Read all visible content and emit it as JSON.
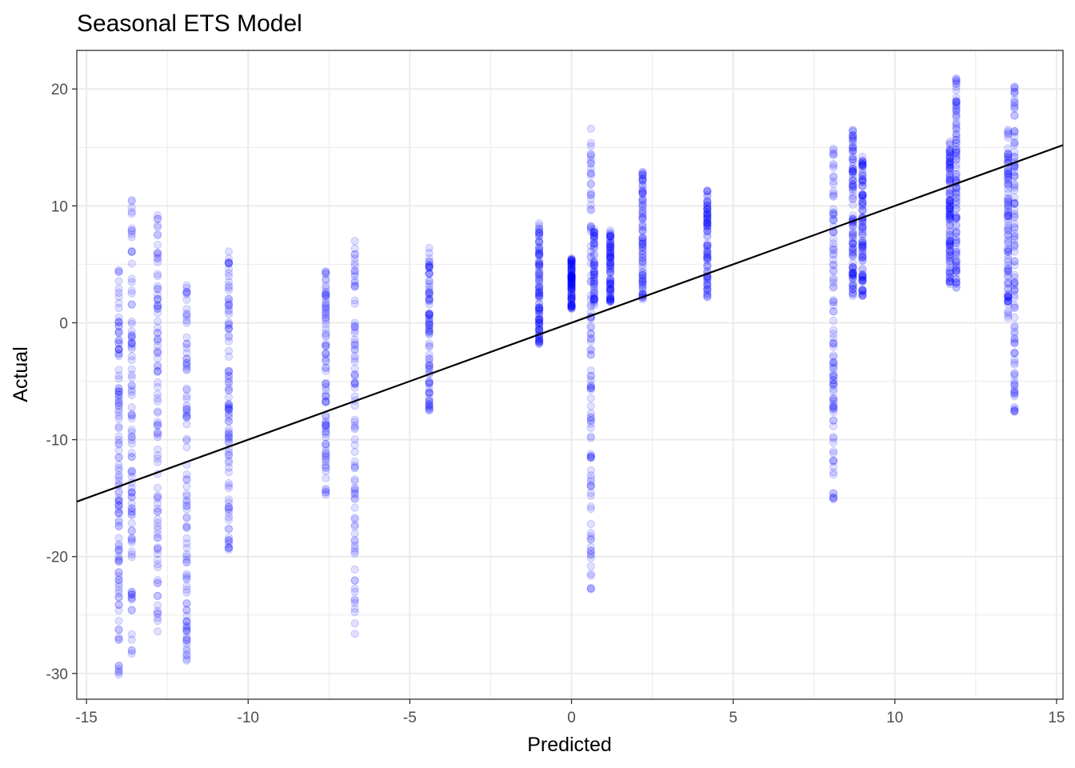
{
  "chart_data": {
    "type": "scatter",
    "title": "Seasonal ETS Model",
    "xlabel": "Predicted",
    "ylabel": "Actual",
    "xlim": [
      -15.3,
      15.2
    ],
    "ylim": [
      -32.2,
      23.3
    ],
    "x_ticks": [
      -15,
      -10,
      -5,
      0,
      5,
      10,
      15
    ],
    "y_ticks": [
      -30,
      -20,
      -10,
      0,
      10,
      20
    ],
    "x_tick_labels": [
      "-15",
      "-10",
      "-5",
      "0",
      "5",
      "10",
      "15"
    ],
    "y_tick_labels": [
      "-30",
      "-20",
      "-10",
      "0",
      "10",
      "20"
    ],
    "grid": true,
    "point_color": "#0000ff",
    "point_alpha": 0.12,
    "reference_line": {
      "type": "identity",
      "slope": 1,
      "intercept": 0,
      "color": "#000000"
    },
    "series": [
      {
        "values": [
          {
            "x": -14.0,
            "points": 120,
            "y_min": -30.1,
            "y_max": 4.5
          },
          {
            "x": -13.6,
            "points": 100,
            "y_min": -28.3,
            "y_max": 10.5
          },
          {
            "x": -12.8,
            "points": 100,
            "y_min": -26.4,
            "y_max": 9.2
          },
          {
            "x": -11.9,
            "points": 100,
            "y_min": -28.9,
            "y_max": 3.2
          },
          {
            "x": -10.6,
            "points": 100,
            "y_min": -19.4,
            "y_max": 6.1
          },
          {
            "x": -7.6,
            "points": 90,
            "y_min": -14.7,
            "y_max": 4.4
          },
          {
            "x": -6.7,
            "points": 90,
            "y_min": -26.6,
            "y_max": 7.0
          },
          {
            "x": -4.4,
            "points": 90,
            "y_min": -7.5,
            "y_max": 6.4
          },
          {
            "x": -1.0,
            "points": 110,
            "y_min": -1.8,
            "y_max": 8.5
          },
          {
            "x": 0.0,
            "points": 110,
            "y_min": 1.2,
            "y_max": 5.5
          },
          {
            "x": 0.6,
            "points": 110,
            "y_min": -22.8,
            "y_max": 16.6
          },
          {
            "x": 0.7,
            "points": 60,
            "y_min": 1.5,
            "y_max": 8.0
          },
          {
            "x": 1.2,
            "points": 90,
            "y_min": 1.8,
            "y_max": 7.9
          },
          {
            "x": 2.2,
            "points": 90,
            "y_min": 2.0,
            "y_max": 12.9
          },
          {
            "x": 4.2,
            "points": 90,
            "y_min": 2.2,
            "y_max": 11.3
          },
          {
            "x": 8.1,
            "points": 110,
            "y_min": -15.1,
            "y_max": 14.9
          },
          {
            "x": 8.7,
            "points": 110,
            "y_min": 2.3,
            "y_max": 16.5
          },
          {
            "x": 9.0,
            "points": 110,
            "y_min": 2.3,
            "y_max": 14.2
          },
          {
            "x": 11.7,
            "points": 120,
            "y_min": 3.3,
            "y_max": 15.5
          },
          {
            "x": 11.9,
            "points": 110,
            "y_min": 3.0,
            "y_max": 20.9
          },
          {
            "x": 13.5,
            "points": 100,
            "y_min": 0.4,
            "y_max": 16.5
          },
          {
            "x": 13.7,
            "points": 110,
            "y_min": -7.6,
            "y_max": 20.2
          }
        ]
      }
    ]
  }
}
